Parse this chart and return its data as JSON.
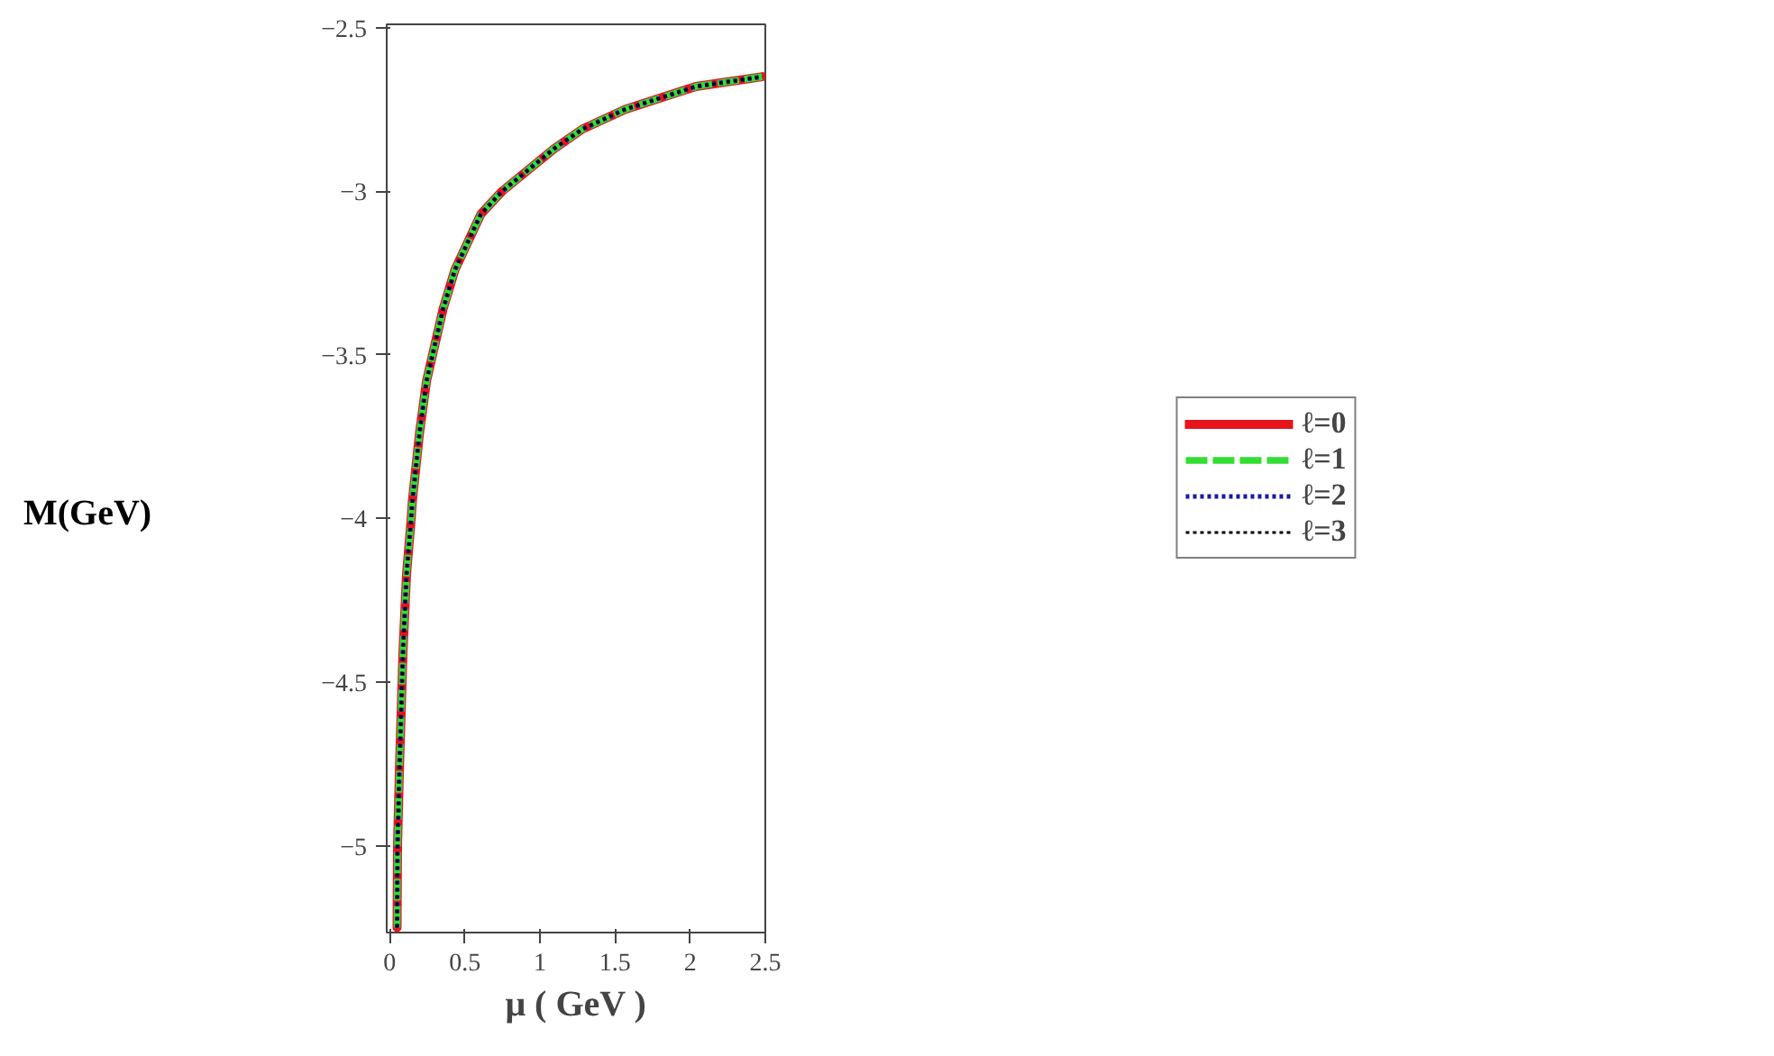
{
  "chart_data": {
    "type": "line",
    "xlabel": "μ ( GeV )",
    "ylabel": "M(GeV)",
    "x": [
      0.049,
      0.052,
      0.065,
      0.088,
      0.112,
      0.143,
      0.15,
      0.198,
      0.245,
      0.355,
      0.434,
      0.607,
      0.748,
      1.094,
      1.283,
      1.566,
      2.038,
      2.48
    ],
    "series": [
      {
        "name": "ℓ=0",
        "color": "#e8141c",
        "line_style": "solid",
        "values": [
          -5.25,
          -5.0,
          -4.76,
          -4.41,
          -4.17,
          -4.0,
          -3.95,
          -3.74,
          -3.58,
          -3.36,
          -3.24,
          -3.07,
          -3.0,
          -2.87,
          -2.81,
          -2.75,
          -2.68,
          -2.65
        ]
      },
      {
        "name": "ℓ=1",
        "color": "#33dd33",
        "line_style": "dashed",
        "values": [
          -5.25,
          -5.0,
          -4.76,
          -4.41,
          -4.17,
          -4.0,
          -3.95,
          -3.74,
          -3.58,
          -3.36,
          -3.24,
          -3.07,
          -3.0,
          -2.87,
          -2.81,
          -2.75,
          -2.68,
          -2.65
        ]
      },
      {
        "name": "ℓ=2",
        "color": "#1a1aa0",
        "line_style": "dotted",
        "values": [
          -5.25,
          -5.0,
          -4.76,
          -4.41,
          -4.17,
          -4.0,
          -3.95,
          -3.74,
          -3.58,
          -3.36,
          -3.24,
          -3.07,
          -3.0,
          -2.87,
          -2.81,
          -2.75,
          -2.68,
          -2.65
        ]
      },
      {
        "name": "ℓ=3",
        "color": "#000000",
        "line_style": "dotted",
        "values": [
          -5.25,
          -5.0,
          -4.76,
          -4.41,
          -4.17,
          -4.0,
          -3.95,
          -3.74,
          -3.58,
          -3.36,
          -3.24,
          -3.07,
          -3.0,
          -2.87,
          -2.81,
          -2.75,
          -2.68,
          -2.65
        ]
      }
    ],
    "xlim": [
      -0.02,
      2.5
    ],
    "ylim": [
      -5.265,
      -2.49
    ],
    "xticks": [
      0,
      0.5,
      1,
      1.5,
      2,
      2.5
    ],
    "yticks": [
      -5,
      -4.5,
      -4,
      -3.5,
      -3,
      -2.5
    ],
    "legend": "right",
    "grid": false
  }
}
